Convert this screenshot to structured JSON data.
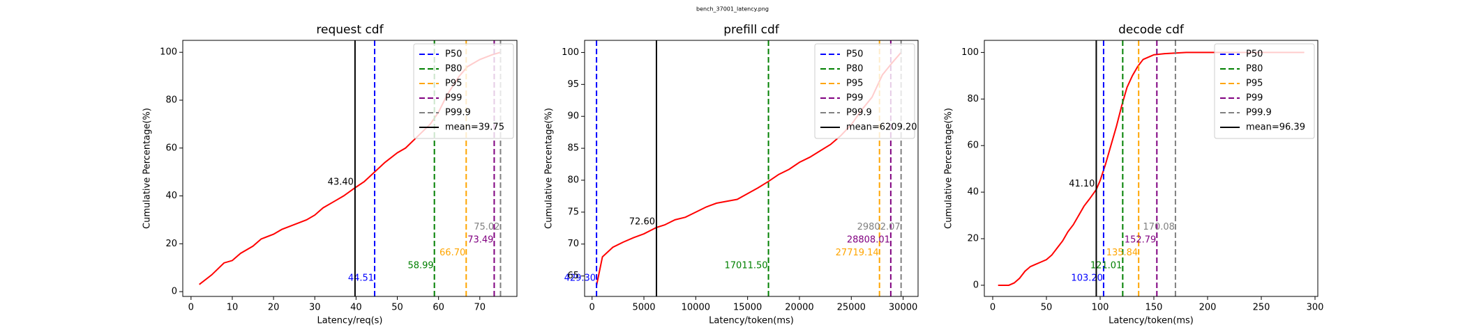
{
  "suptitle": "bench_37001_latency.png",
  "chart_data": [
    {
      "type": "line",
      "title": "request cdf",
      "xlabel": "Latency/req(s)",
      "ylabel": "Cumulative Percentage(%)",
      "xlim": [
        -2,
        79
      ],
      "ylim": [
        -2,
        105
      ],
      "xticks": [
        0,
        10,
        20,
        30,
        40,
        50,
        60,
        70
      ],
      "yticks": [
        0,
        20,
        40,
        60,
        80,
        100
      ],
      "color": "#ff0000",
      "legend": "upper right",
      "x": [
        2,
        5,
        8,
        10,
        12,
        15,
        17,
        20,
        22,
        25,
        28,
        30,
        32,
        35,
        37,
        39.75,
        42,
        44.51,
        47,
        50,
        52,
        55,
        58,
        60,
        62,
        65,
        67,
        70,
        73,
        75
      ],
      "values": [
        3,
        7,
        12,
        13,
        16,
        19,
        22,
        24,
        26,
        28,
        30,
        32,
        35,
        38,
        40,
        43.4,
        46,
        50,
        54,
        58,
        60,
        65,
        70,
        75,
        82,
        90,
        94,
        97,
        99,
        100
      ],
      "vlines": [
        {
          "name": "P50",
          "color": "#0000ff",
          "value": 44.51,
          "label": "44.51"
        },
        {
          "name": "P80",
          "color": "#008000",
          "value": 58.99,
          "label": "58.99"
        },
        {
          "name": "P95",
          "color": "#ffa500",
          "value": 66.7,
          "label": "66.70"
        },
        {
          "name": "P99",
          "color": "#800080",
          "value": 73.49,
          "label": "73.49"
        },
        {
          "name": "P99.9",
          "color": "#808080",
          "value": 75.02,
          "label": "75.02"
        }
      ],
      "mean": {
        "name": "mean=39.75",
        "color": "#000000",
        "value": 39.75
      },
      "annotation": {
        "value": 43.4,
        "label": "43.40"
      }
    },
    {
      "type": "line",
      "title": "prefill cdf",
      "xlabel": "Latency/token(ms)",
      "ylabel": "Cumulative Percentage(%)",
      "xlim": [
        -720,
        31440
      ],
      "ylim": [
        61.8,
        101.9
      ],
      "xticks": [
        0,
        5000,
        10000,
        15000,
        20000,
        25000,
        30000
      ],
      "yticks": [
        65,
        70,
        75,
        80,
        85,
        90,
        95,
        100
      ],
      "color": "#ff0000",
      "legend": "upper right",
      "x": [
        429.3,
        1000,
        2000,
        3000,
        4000,
        5000,
        6209.2,
        7000,
        8000,
        9000,
        10000,
        11000,
        12000,
        13000,
        14000,
        15000,
        16000,
        17000,
        18000,
        19000,
        20000,
        21000,
        22000,
        23000,
        24000,
        25000,
        26000,
        27000,
        28000,
        29000,
        29800
      ],
      "values": [
        63.5,
        68,
        69.5,
        70.3,
        71,
        71.6,
        72.6,
        73,
        73.8,
        74.2,
        75,
        75.8,
        76.4,
        76.7,
        77,
        77.9,
        78.8,
        79.8,
        80.9,
        81.7,
        82.8,
        83.6,
        84.6,
        85.6,
        87,
        88.7,
        91,
        93,
        96.5,
        98.5,
        100
      ],
      "vlines": [
        {
          "name": "P50",
          "color": "#0000ff",
          "value": 429.3,
          "label": "429.30"
        },
        {
          "name": "P80",
          "color": "#008000",
          "value": 17011.5,
          "label": "17011.50"
        },
        {
          "name": "P95",
          "color": "#ffa500",
          "value": 27719.14,
          "label": "27719.14"
        },
        {
          "name": "P99",
          "color": "#800080",
          "value": 28808.01,
          "label": "28808.01"
        },
        {
          "name": "P99.9",
          "color": "#808080",
          "value": 29802.07,
          "label": "29802.07"
        }
      ],
      "mean": {
        "name": "mean=6209.20",
        "color": "#000000",
        "value": 6209.2
      },
      "annotation": {
        "value": 72.6,
        "label": "72.60"
      }
    },
    {
      "type": "line",
      "title": "decode cdf",
      "xlabel": "Latency/token(ms)",
      "ylabel": "Cumulative Percentage(%)",
      "xlim": [
        -7.8,
        302.6
      ],
      "ylim": [
        -4.8,
        105.2
      ],
      "xticks": [
        0,
        50,
        100,
        150,
        200,
        250,
        300
      ],
      "yticks": [
        0,
        20,
        40,
        60,
        80,
        100
      ],
      "color": "#ff0000",
      "legend": "upper right",
      "x": [
        5,
        15,
        20,
        25,
        30,
        35,
        40,
        45,
        50,
        55,
        60,
        65,
        70,
        75,
        80,
        85,
        90,
        96.39,
        100,
        105,
        110,
        115,
        120,
        125,
        130,
        135,
        140,
        145,
        150,
        160,
        180,
        200,
        250,
        290
      ],
      "values": [
        0,
        0,
        1,
        3,
        6,
        8,
        9,
        10,
        11,
        13,
        16,
        19,
        23,
        26,
        30,
        34,
        37,
        41.1,
        45,
        52,
        60,
        68,
        77,
        85,
        90,
        94,
        97,
        98,
        99,
        99.5,
        100,
        100,
        100,
        100
      ],
      "vlines": [
        {
          "name": "P50",
          "color": "#0000ff",
          "value": 103.2,
          "label": "103.20"
        },
        {
          "name": "P80",
          "color": "#008000",
          "value": 121.01,
          "label": "121.01"
        },
        {
          "name": "P95",
          "color": "#ffa500",
          "value": 135.84,
          "label": "135.84"
        },
        {
          "name": "P99",
          "color": "#800080",
          "value": 152.79,
          "label": "152.79"
        },
        {
          "name": "P99.9",
          "color": "#808080",
          "value": 170.08,
          "label": "170.08"
        }
      ],
      "mean": {
        "name": "mean=96.39",
        "color": "#000000",
        "value": 96.39
      },
      "annotation": {
        "value": 41.1,
        "label": "41.10"
      }
    }
  ]
}
